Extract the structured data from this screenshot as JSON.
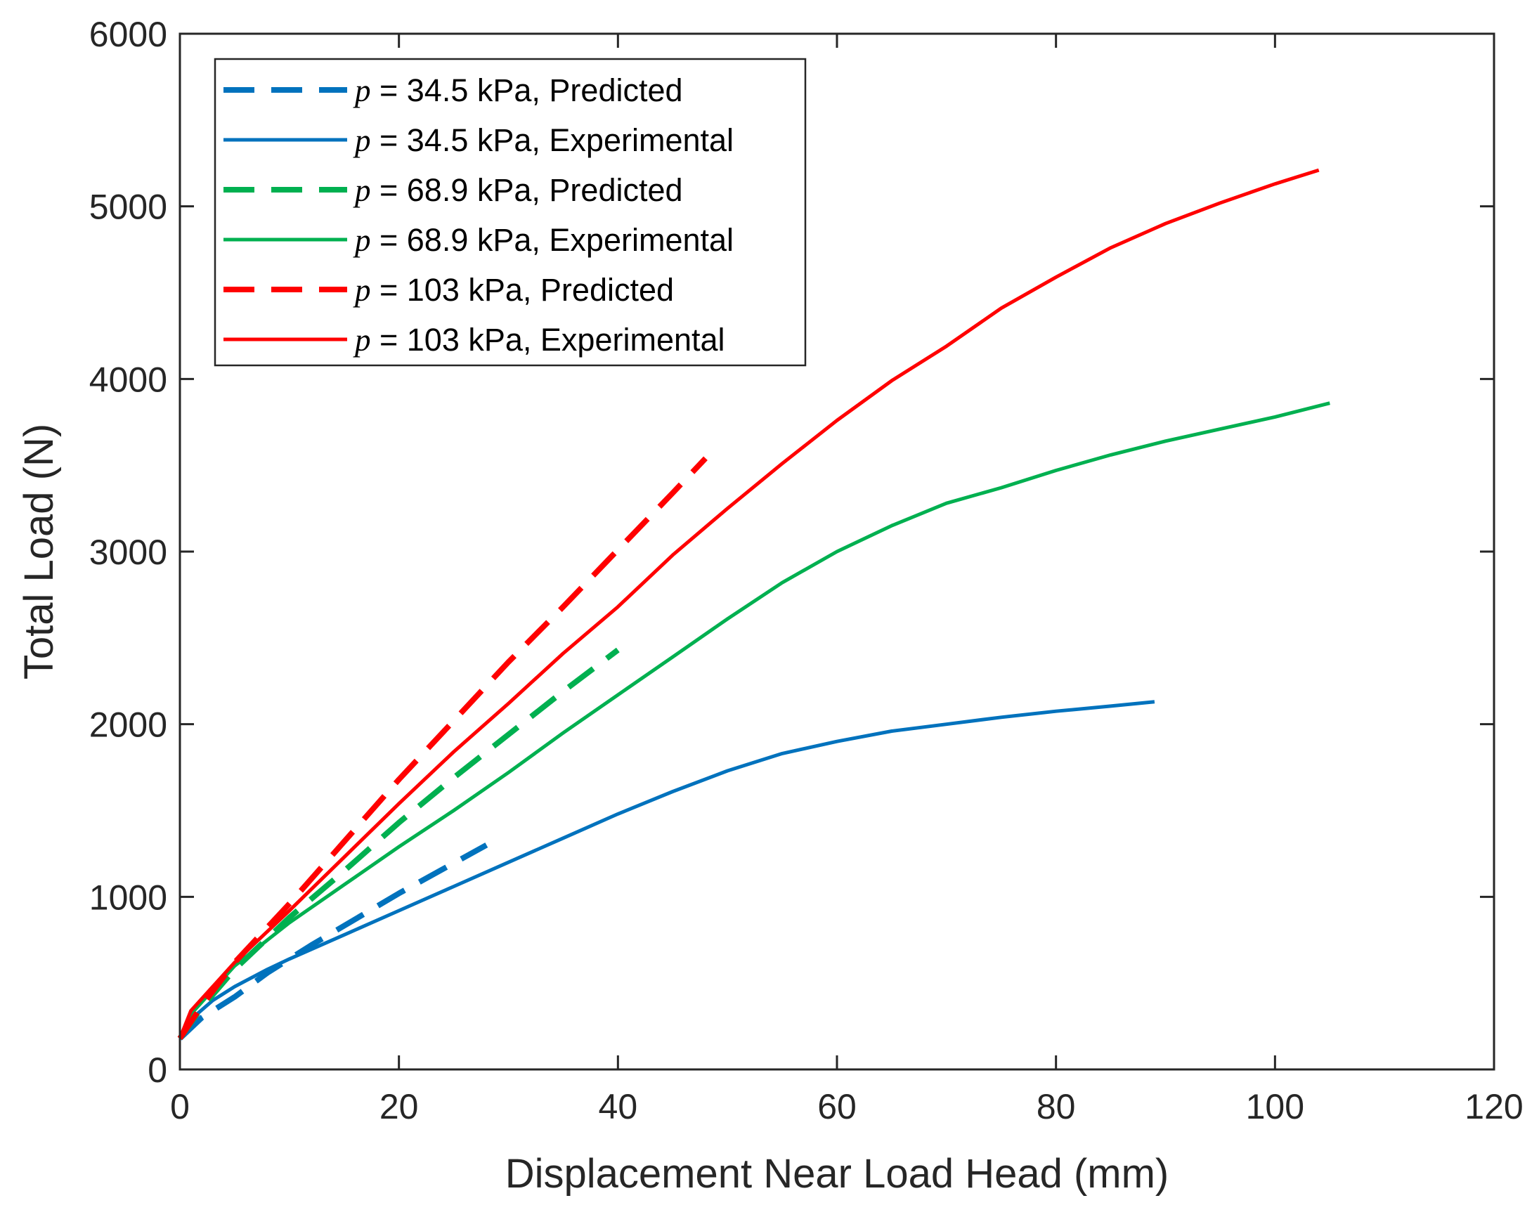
{
  "chart_data": {
    "type": "line",
    "title": "",
    "xlabel": "Displacement Near Load Head (mm)",
    "ylabel": "Total Load (N)",
    "xlim": [
      0,
      120
    ],
    "ylim": [
      0,
      6000
    ],
    "xticks": [
      0,
      20,
      40,
      60,
      80,
      100,
      120
    ],
    "yticks": [
      0,
      1000,
      2000,
      3000,
      4000,
      5000,
      6000
    ],
    "grid": false,
    "legend_location": "top-left",
    "series": [
      {
        "name": "p = 34.5 kPa, Predicted",
        "symbol": "p",
        "label_suffix": " = 34.5 kPa, Predicted",
        "color": "#0072BD",
        "style": "dashed",
        "x": [
          0,
          2,
          5,
          8,
          12,
          16,
          20,
          24,
          28
        ],
        "y": [
          180,
          300,
          420,
          560,
          720,
          870,
          1020,
          1160,
          1300
        ]
      },
      {
        "name": "p = 34.5 kPa, Experimental",
        "symbol": "p",
        "label_suffix": " = 34.5 kPa, Experimental",
        "color": "#0072BD",
        "style": "solid",
        "x": [
          0,
          1,
          3,
          5,
          8,
          10,
          15,
          20,
          25,
          30,
          35,
          40,
          45,
          50,
          55,
          60,
          65,
          70,
          75,
          80,
          85,
          89
        ],
        "y": [
          180,
          290,
          400,
          480,
          580,
          640,
          780,
          920,
          1060,
          1200,
          1340,
          1480,
          1610,
          1730,
          1830,
          1900,
          1960,
          2000,
          2040,
          2075,
          2105,
          2130
        ]
      },
      {
        "name": "p = 68.9 kPa, Predicted",
        "symbol": "p",
        "label_suffix": " = 68.9 kPa, Predicted",
        "color": "#00B050",
        "style": "dashed",
        "x": [
          0,
          2,
          5,
          10,
          15,
          20,
          25,
          30,
          35,
          40
        ],
        "y": [
          180,
          360,
          580,
          880,
          1150,
          1430,
          1690,
          1940,
          2190,
          2430
        ]
      },
      {
        "name": "p = 68.9 kPa, Experimental",
        "symbol": "p",
        "label_suffix": " = 68.9 kPa, Experimental",
        "color": "#00B050",
        "style": "solid",
        "x": [
          0,
          1,
          3,
          5,
          10,
          15,
          20,
          25,
          30,
          35,
          40,
          45,
          50,
          55,
          60,
          65,
          70,
          75,
          80,
          85,
          90,
          95,
          100,
          105
        ],
        "y": [
          180,
          320,
          460,
          600,
          850,
          1070,
          1290,
          1500,
          1720,
          1950,
          2170,
          2390,
          2610,
          2820,
          3000,
          3150,
          3280,
          3370,
          3470,
          3560,
          3640,
          3710,
          3780,
          3860
        ]
      },
      {
        "name": "p = 103 kPa, Predicted",
        "symbol": "p",
        "label_suffix": " = 103 kPa, Predicted",
        "color": "#FF0000",
        "style": "dashed",
        "x": [
          0,
          2,
          5,
          10,
          15,
          20,
          25,
          30,
          35,
          40,
          45,
          48
        ],
        "y": [
          180,
          370,
          620,
          960,
          1320,
          1680,
          2020,
          2360,
          2680,
          3010,
          3340,
          3540
        ]
      },
      {
        "name": "p = 103 kPa, Experimental",
        "symbol": "p",
        "label_suffix": " = 103 kPa, Experimental",
        "color": "#FF0000",
        "style": "solid",
        "x": [
          0,
          1,
          3,
          5,
          10,
          15,
          20,
          25,
          30,
          35,
          40,
          45,
          50,
          55,
          60,
          65,
          70,
          75,
          80,
          85,
          90,
          95,
          100,
          104
        ],
        "y": [
          180,
          340,
          480,
          620,
          920,
          1230,
          1540,
          1840,
          2120,
          2410,
          2680,
          2980,
          3250,
          3510,
          3760,
          3990,
          4190,
          4410,
          4590,
          4760,
          4900,
          5020,
          5130,
          5210
        ]
      }
    ]
  }
}
